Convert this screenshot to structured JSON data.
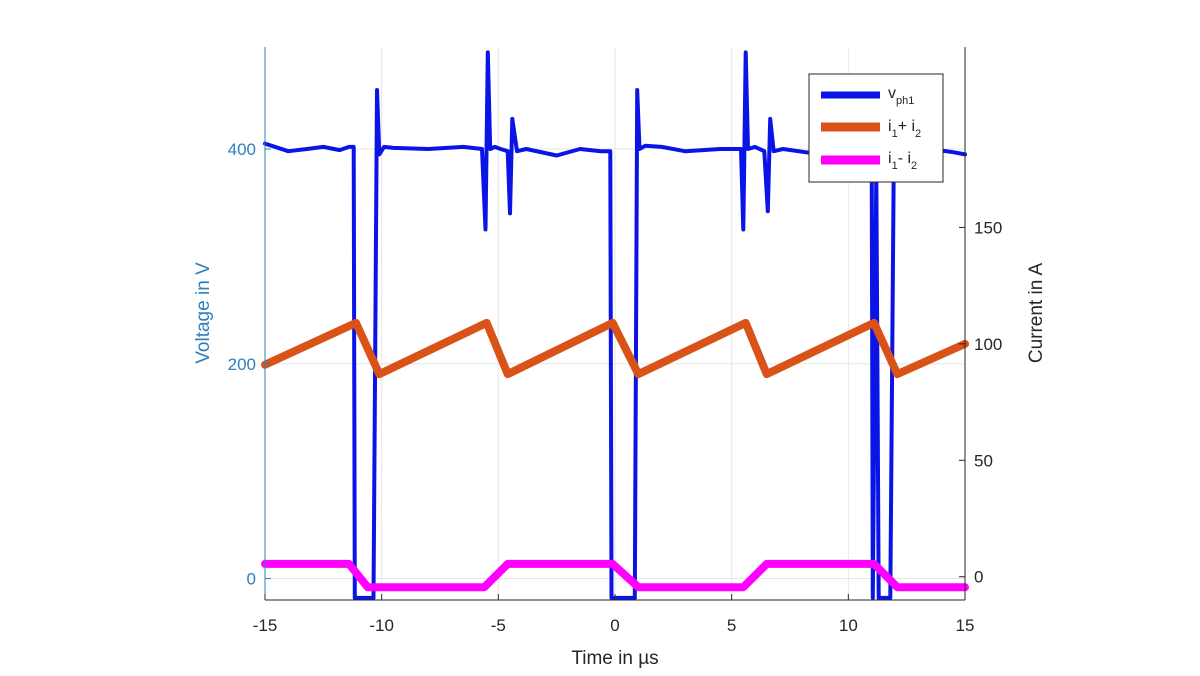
{
  "chart_data": {
    "type": "line",
    "title": "",
    "xlabel": "Time in µs",
    "ylabel_left": "Voltage in V",
    "ylabel_right": "Current in A",
    "xlim": [
      -15,
      15
    ],
    "ylim_left": [
      -20,
      495
    ],
    "ylim_right": [
      -10,
      227.5
    ],
    "x_ticks": [
      -15,
      -10,
      -5,
      0,
      5,
      10,
      15
    ],
    "y_left_ticks": [
      0,
      200,
      400
    ],
    "y_right_ticks": [
      0,
      50,
      100,
      150
    ],
    "grid": true,
    "legend_position": "top-right",
    "colors": {
      "left_axis": "#2f7fbd",
      "right_axis": "#262626",
      "grid": "#e6e6e6"
    },
    "series": [
      {
        "name": "v_ph1",
        "legend_main": "v",
        "legend_sub": "ph1",
        "axis": "left",
        "color": "#0a14e6",
        "x": [
          -15,
          -14,
          -13.2,
          -12.5,
          -11.8,
          -11.4,
          -11.2,
          -11.15,
          -10.6,
          -10.35,
          -10.2,
          -10.1,
          -9.9,
          -9.5,
          -8,
          -6.5,
          -5.7,
          -5.55,
          -5.45,
          -5.35,
          -5.15,
          -4.9,
          -4.6,
          -4.5,
          -4.4,
          -4.2,
          -3.8,
          -2.5,
          -1.5,
          -0.6,
          -0.2,
          -0.15,
          0.4,
          0.85,
          0.95,
          1.05,
          1.3,
          2,
          3,
          4.5,
          5.4,
          5.5,
          5.6,
          5.7,
          6,
          6.4,
          6.55,
          6.65,
          6.8,
          7.2,
          8.5,
          10,
          10.9,
          11,
          11.05,
          11.2,
          11.3,
          11.8,
          11.95,
          12.1,
          12.2,
          12.5,
          13.5,
          14.5,
          15
        ],
        "y": [
          405,
          398,
          400,
          402,
          399,
          402,
          402,
          -18,
          -18,
          -18,
          455,
          395,
          402,
          401,
          400,
          402,
          400,
          325,
          490,
          400,
          402,
          400,
          398,
          340,
          428,
          398,
          400,
          394,
          400,
          398,
          398,
          -18,
          -18,
          -18,
          455,
          400,
          403,
          402,
          398,
          400,
          400,
          325,
          490,
          400,
          402,
          398,
          342,
          428,
          398,
          400,
          396,
          400,
          400,
          398,
          -18,
          380,
          -18,
          -18,
          392,
          398,
          400,
          398,
          400,
          397,
          395
        ]
      },
      {
        "name": "i_1 + i_2",
        "legend_main": "i",
        "legend_sub": "1",
        "legend_mid": "+ i",
        "legend_sub2": "2",
        "axis": "right",
        "color": "#d95319",
        "x": [
          -15,
          -11.1,
          -10.1,
          -5.5,
          -4.6,
          -0.1,
          1,
          5.6,
          6.5,
          11.1,
          12.1,
          15
        ],
        "y": [
          91,
          109,
          87,
          109,
          87,
          109,
          87,
          109,
          87,
          109,
          87,
          100
        ]
      },
      {
        "name": "i_1 - i_2",
        "legend_main": "i",
        "legend_sub": "1",
        "legend_mid": "- i",
        "legend_sub2": "2",
        "axis": "right",
        "color": "#ff00ff",
        "x": [
          -15,
          -11.4,
          -10.6,
          -5.6,
          -4.6,
          -0.1,
          1,
          5.5,
          6.5,
          11.1,
          12.1,
          15
        ],
        "y": [
          5.5,
          5.5,
          -4.5,
          -4.5,
          5.5,
          5.5,
          -4.5,
          -4.5,
          5.5,
          5.5,
          -4.5,
          -4.5
        ]
      }
    ]
  }
}
